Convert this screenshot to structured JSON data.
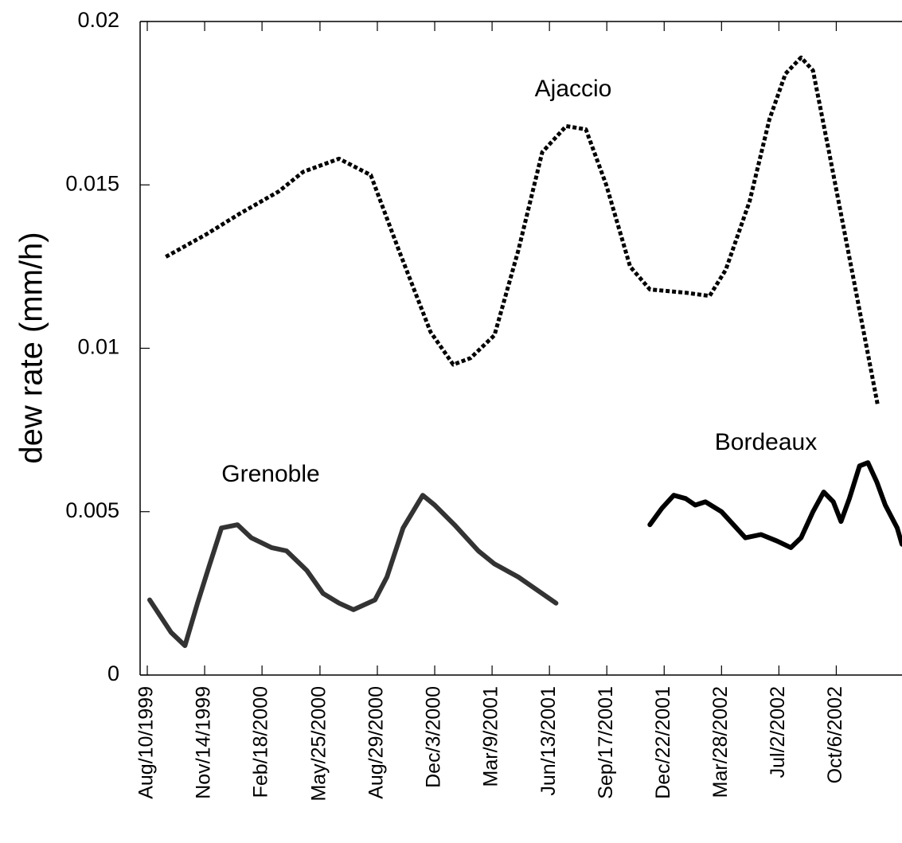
{
  "chart_data": {
    "type": "line",
    "y_label": "dew rate (mm/h)",
    "xlim": [
      "1999-07-29",
      "2003-01-24"
    ],
    "xticks": [
      {
        "value": "1999-08-10",
        "label": "Aug/10/1999"
      },
      {
        "value": "1999-11-14",
        "label": "Nov/14/1999"
      },
      {
        "value": "2000-02-18",
        "label": "Feb/18/2000"
      },
      {
        "value": "2000-05-25",
        "label": "May/25/2000"
      },
      {
        "value": "2000-08-29",
        "label": "Aug/29/2000"
      },
      {
        "value": "2000-12-03",
        "label": "Dec/3/2000"
      },
      {
        "value": "2001-03-09",
        "label": "Mar/9/2001"
      },
      {
        "value": "2001-06-13",
        "label": "Jun/13/2001"
      },
      {
        "value": "2001-09-17",
        "label": "Sep/17/2001"
      },
      {
        "value": "2001-12-22",
        "label": "Dec/22/2001"
      },
      {
        "value": "2002-03-28",
        "label": "Mar/28/2002"
      },
      {
        "value": "2002-07-02",
        "label": "Jul/2/2002"
      },
      {
        "value": "2002-10-06",
        "label": "Oct/6/2002"
      }
    ],
    "ylim": [
      0,
      0.02
    ],
    "yticks": [
      0,
      0.005,
      0.01,
      0.015,
      0.02
    ],
    "grid": false,
    "series": [
      {
        "name": "Ajaccio",
        "color": "#000000",
        "style": "dotted",
        "x": [
          "1999-09-10",
          "1999-11-18",
          "2000-01-10",
          "2000-03-17",
          "2000-04-27",
          "2000-06-26",
          "2000-08-18",
          "2000-10-04",
          "2000-11-26",
          "2001-01-03",
          "2001-02-01",
          "2001-03-13",
          "2001-04-22",
          "2001-06-01",
          "2001-07-11",
          "2001-08-13",
          "2001-09-16",
          "2001-10-26",
          "2001-11-28",
          "2002-01-27",
          "2002-03-08",
          "2002-04-04",
          "2002-05-14",
          "2002-06-16",
          "2002-07-13",
          "2002-08-08",
          "2002-08-28",
          "2002-09-24",
          "2002-11-03",
          "2002-12-14"
        ],
        "values": [
          0.0128,
          0.0135,
          0.0141,
          0.0148,
          0.0154,
          0.0158,
          0.0153,
          0.013,
          0.0105,
          0.0095,
          0.0097,
          0.0104,
          0.013,
          0.016,
          0.0168,
          0.0167,
          0.015,
          0.0125,
          0.0118,
          0.0117,
          0.0116,
          0.0124,
          0.0145,
          0.017,
          0.0184,
          0.0189,
          0.0185,
          0.016,
          0.0122,
          0.0083
        ]
      },
      {
        "name": "Grenoble",
        "color": "#333333",
        "style": "solid",
        "x": [
          "1999-08-14",
          "1999-09-19",
          "1999-10-12",
          "1999-11-02",
          "1999-11-21",
          "1999-12-12",
          "2000-01-08",
          "2000-01-31",
          "2000-03-05",
          "2000-03-30",
          "2000-05-03",
          "2000-05-30",
          "2000-06-26",
          "2000-07-20",
          "2000-08-25",
          "2000-09-14",
          "2000-10-11",
          "2000-11-13",
          "2000-12-03",
          "2001-01-05",
          "2001-02-14",
          "2001-03-13",
          "2001-04-22",
          "2001-06-24"
        ],
        "values": [
          0.0023,
          0.0013,
          0.0009,
          0.0022,
          0.0033,
          0.0045,
          0.0046,
          0.0042,
          0.0039,
          0.0038,
          0.0032,
          0.0025,
          0.0022,
          0.002,
          0.0023,
          0.003,
          0.0045,
          0.0055,
          0.0052,
          0.0046,
          0.0038,
          0.0034,
          0.003,
          0.0022
        ]
      },
      {
        "name": "Bordeaux",
        "color": "#000000",
        "style": "solid",
        "x": [
          "2001-11-28",
          "2001-12-18",
          "2002-01-07",
          "2002-01-27",
          "2002-02-12",
          "2002-03-01",
          "2002-03-28",
          "2002-04-17",
          "2002-05-07",
          "2002-06-02",
          "2002-06-29",
          "2002-07-22",
          "2002-08-08",
          "2002-08-28",
          "2002-09-15",
          "2002-10-01",
          "2002-10-14",
          "2002-10-28",
          "2002-11-14",
          "2002-11-28",
          "2002-12-13",
          "2002-12-27",
          "2003-01-16",
          "2003-01-24"
        ],
        "values": [
          0.0046,
          0.0051,
          0.0055,
          0.0054,
          0.0052,
          0.0053,
          0.005,
          0.0046,
          0.0042,
          0.0043,
          0.0041,
          0.0039,
          0.0042,
          0.005,
          0.0056,
          0.0053,
          0.0047,
          0.0054,
          0.0064,
          0.0065,
          0.0059,
          0.0052,
          0.0045,
          0.004
        ]
      }
    ]
  }
}
